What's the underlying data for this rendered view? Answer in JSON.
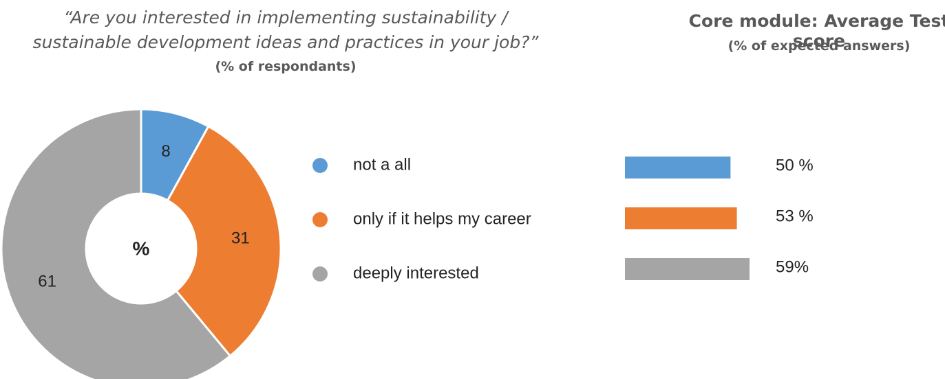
{
  "chart_data": [
    {
      "type": "donut",
      "title": "“Are you interested in implementing sustainability / sustainable development ideas and practices in your job?”",
      "subtitle": "(% of respondants)",
      "center_label": "%",
      "categories": [
        "not a all",
        "only if it helps my career",
        "deeply interested"
      ],
      "values": [
        8,
        31,
        61
      ],
      "colors": [
        "#5b9bd5",
        "#ed7d31",
        "#a5a5a5"
      ],
      "legend": "right"
    },
    {
      "type": "hbar",
      "title": "Core module: Average Test score",
      "subtitle": "(% of expected answers)",
      "values": [
        50,
        53,
        59
      ],
      "value_labels": [
        "50 %",
        "53 %",
        "59%"
      ],
      "colors": [
        "#5b9bd5",
        "#ed7d31",
        "#a5a5a5"
      ]
    }
  ]
}
